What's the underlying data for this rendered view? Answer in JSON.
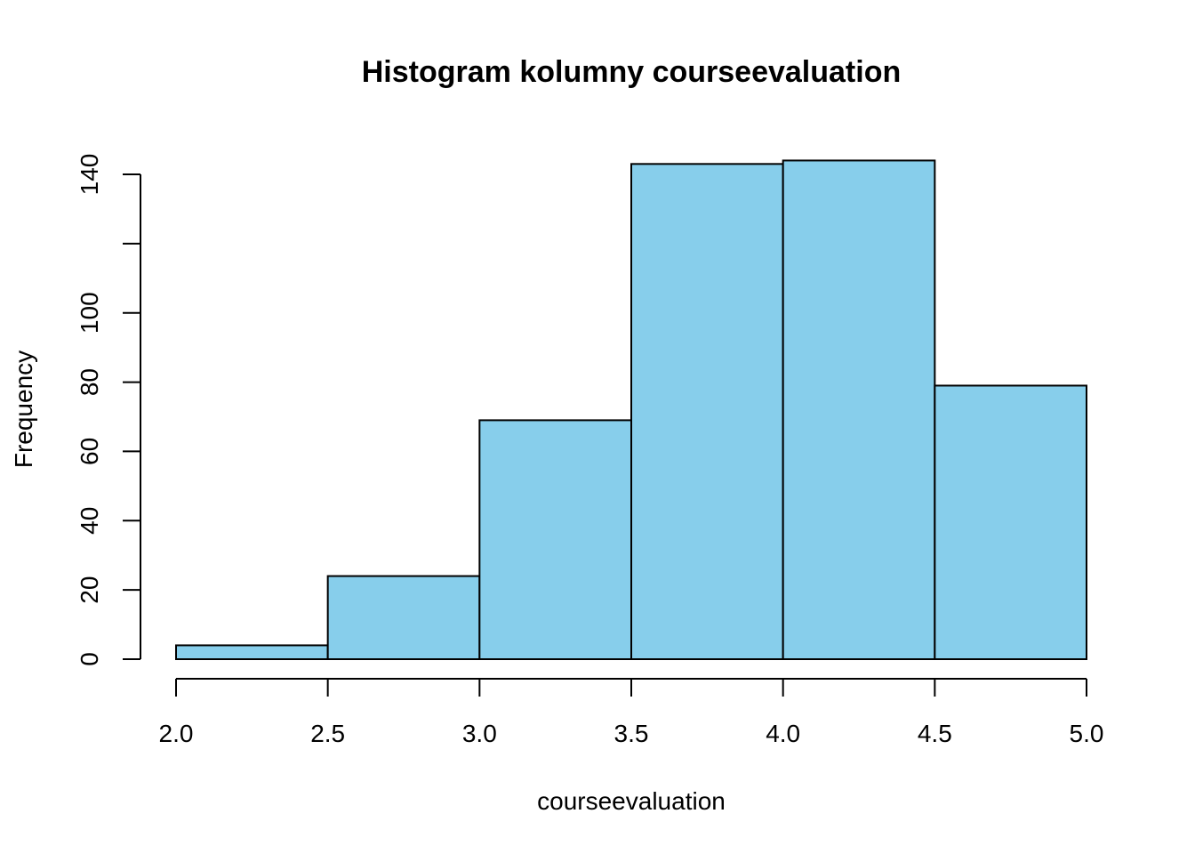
{
  "chart_data": {
    "type": "bar",
    "title": "Histogram kolumny courseevaluation",
    "xlabel": "courseevaluation",
    "ylabel": "Frequency",
    "bins": [
      {
        "start": 2.0,
        "end": 2.5,
        "value": 4
      },
      {
        "start": 2.5,
        "end": 3.0,
        "value": 24
      },
      {
        "start": 3.0,
        "end": 3.5,
        "value": 69
      },
      {
        "start": 3.5,
        "end": 4.0,
        "value": 143
      },
      {
        "start": 4.0,
        "end": 4.5,
        "value": 144
      },
      {
        "start": 4.5,
        "end": 5.0,
        "value": 79
      }
    ],
    "xlim": [
      2.0,
      5.0
    ],
    "ylim": [
      0,
      140
    ],
    "x_ticks": [
      "2.0",
      "2.5",
      "3.0",
      "3.5",
      "4.0",
      "4.5",
      "5.0"
    ],
    "y_ticks": [
      0,
      20,
      40,
      60,
      80,
      100,
      120,
      140
    ],
    "y_tick_labels": [
      "0",
      "20",
      "40",
      "60",
      "80",
      "100",
      "",
      "140"
    ],
    "bar_color": "#87CEEB",
    "grid": false,
    "legend": "none"
  }
}
